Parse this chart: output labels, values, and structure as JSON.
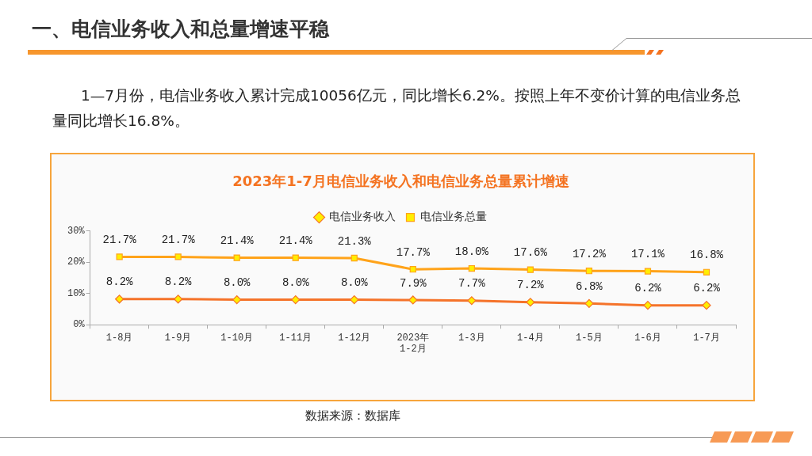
{
  "chart_data": {
    "type": "line",
    "title": "2023年1-7月电信业务收入和电信业务总量累计增速",
    "categories": [
      "1-8月",
      "1-9月",
      "1-10月",
      "1-11月",
      "1-12月",
      "2023年\n1-2月",
      "1-3月",
      "1-4月",
      "1-5月",
      "1-6月",
      "1-7月"
    ],
    "series": [
      {
        "name": "电信业务收入",
        "color": "#f5732a",
        "marker": "diamond",
        "values": [
          8.2,
          8.2,
          8.0,
          8.0,
          8.0,
          7.9,
          7.7,
          7.2,
          6.8,
          6.2,
          6.2
        ],
        "value_labels": [
          "8.2%",
          "8.2%",
          "8.0%",
          "8.0%",
          "8.0%",
          "7.9%",
          "7.7%",
          "7.2%",
          "6.8%",
          "6.2%",
          "6.2%"
        ]
      },
      {
        "name": "电信业务总量",
        "color": "#ffa31a",
        "marker": "square",
        "values": [
          21.7,
          21.7,
          21.4,
          21.4,
          21.3,
          17.7,
          18.0,
          17.6,
          17.2,
          17.1,
          16.8
        ],
        "value_labels": [
          "21.7%",
          "21.7%",
          "21.4%",
          "21.4%",
          "21.3%",
          "17.7%",
          "18.0%",
          "17.6%",
          "17.2%",
          "17.1%",
          "16.8%"
        ]
      }
    ],
    "ylim": [
      0,
      30
    ],
    "yticks": [
      {
        "value": 0,
        "label": "0%"
      },
      {
        "value": 10,
        "label": "10%"
      },
      {
        "value": 20,
        "label": "20%"
      },
      {
        "value": 30,
        "label": "30%"
      }
    ],
    "grid": false,
    "legend": "top",
    "annotations": [
      "一、电信业务收入和总量增速平稳",
      "1—7月份，电信业务收入累计完成10056亿元，同比增长6.2%。按照上年不变价计算的电信业务总量同比增长16.8%。",
      "数据来源：数据库"
    ]
  }
}
